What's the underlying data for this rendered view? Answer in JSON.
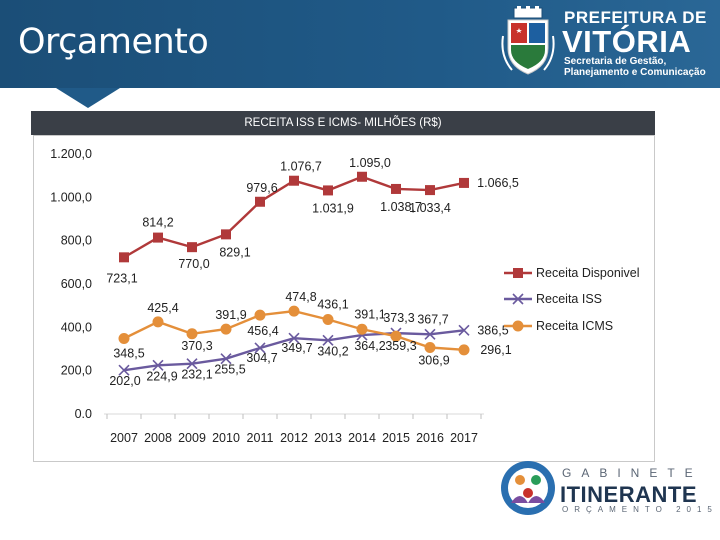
{
  "header": {
    "title": "Orçamento",
    "logo_line1": "PREFEITURA DE",
    "logo_line2": "VITÓRIA",
    "logo_sub1": "Secretaria de Gestão,",
    "logo_sub2": "Planejamento e Comunicação"
  },
  "footer_logo": {
    "line1": "GABINETE",
    "line2": "ITINERANTE",
    "line3": "ORÇAMENTO 2015"
  },
  "colors": {
    "header_bg": "#205a88",
    "titlebar_bg": "#3a3f47",
    "disponivel": "#b0393a",
    "iss": "#6a5a9e",
    "icms": "#e48f3a"
  },
  "chart_data": {
    "type": "line",
    "title": "RECEITA ISS E ICMS- MILHÕES (R$)",
    "categories": [
      "2007",
      "2008",
      "2009",
      "2010",
      "2011",
      "2012",
      "2013",
      "2014",
      "2015",
      "2016",
      "2017"
    ],
    "ylim": [
      0,
      1200
    ],
    "yticks": [
      "0.0",
      "200,0",
      "400,0",
      "600,0",
      "800,0",
      "1.000,0",
      "1.200,0"
    ],
    "legend_position": "right",
    "grid": false,
    "series": [
      {
        "name": "Receita Disponivel",
        "marker": "square",
        "values": [
          723.1,
          814.2,
          770.0,
          829.1,
          979.6,
          1076.7,
          1031.9,
          1095.0,
          1038.7,
          1033.4,
          1066.5
        ],
        "labels": [
          "723,1",
          "814,2",
          "770,0",
          "829,1",
          "979,6",
          "1.076,7",
          "1.031,9",
          "1.095,0",
          "1.038,7",
          "1.033,4",
          "1.066,5"
        ]
      },
      {
        "name": "Receita ISS",
        "marker": "x",
        "values": [
          202.0,
          224.9,
          232.1,
          255.5,
          304.7,
          349.7,
          340.2,
          364.2,
          373.3,
          367.7,
          386.5
        ],
        "labels": [
          "202,0",
          "224,9",
          "232,1",
          "255,5",
          "304,7",
          "349,7",
          "340,2",
          "364,2",
          "373,3",
          "367,7",
          "386,5"
        ]
      },
      {
        "name": "Receita ICMS",
        "marker": "circle",
        "values": [
          348.5,
          425.4,
          370.3,
          391.9,
          456.4,
          474.8,
          436.1,
          391.1,
          359.3,
          306.9,
          296.1
        ],
        "labels": [
          "348,5",
          "425,4",
          "370,3",
          "391,9",
          "456,4",
          "474,8",
          "436,1",
          "391,1",
          "359,3",
          "306,9",
          "296,1"
        ]
      }
    ]
  }
}
